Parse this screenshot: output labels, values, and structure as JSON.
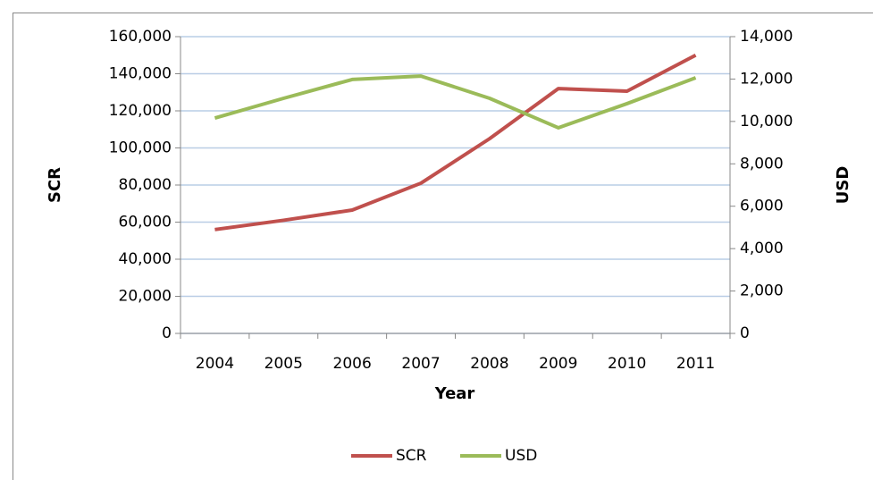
{
  "chart_data": {
    "type": "line",
    "categories": [
      "2004",
      "2005",
      "2006",
      "2007",
      "2008",
      "2009",
      "2010",
      "2011"
    ],
    "x_label": "Year",
    "y_label": "SCR",
    "y2_label": "USD",
    "series": [
      {
        "name": "SCR",
        "color": "#c0504d",
        "values": [
          56000,
          61000,
          66500,
          81000,
          105000,
          132000,
          130600,
          150000
        ]
      },
      {
        "name": "USD",
        "color": "#9bbb59",
        "axis": "y2",
        "values": [
          10160,
          11090,
          11980,
          12140,
          11090,
          9700,
          10840,
          12060
        ]
      }
    ],
    "ylim": [
      0,
      160000
    ],
    "yticks": [
      0,
      {
        "value": 20000,
        "label": "20,000"
      },
      {
        "value": 40000,
        "label": "40,000"
      },
      {
        "value": 60000,
        "label": "60,000"
      },
      {
        "value": 80000,
        "label": "80,000"
      },
      {
        "value": 100000,
        "label": "100,000"
      },
      {
        "value": 120000,
        "label": "120,000"
      },
      {
        "value": 140000,
        "label": "140,000"
      },
      {
        "value": 160000,
        "label": "160,000"
      }
    ],
    "y2lim": [
      0,
      14000
    ],
    "y2ticks": [
      0,
      {
        "value": 2000,
        "label": "2,000"
      },
      {
        "value": 4000,
        "label": "4,000"
      },
      {
        "value": 6000,
        "label": "6,000"
      },
      {
        "value": 8000,
        "label": "8,000"
      },
      {
        "value": 10000,
        "label": "10,000"
      },
      {
        "value": 12000,
        "label": "12,000"
      },
      {
        "value": 14000,
        "label": "14,000"
      }
    ],
    "grid": true,
    "legend": "bottom"
  }
}
